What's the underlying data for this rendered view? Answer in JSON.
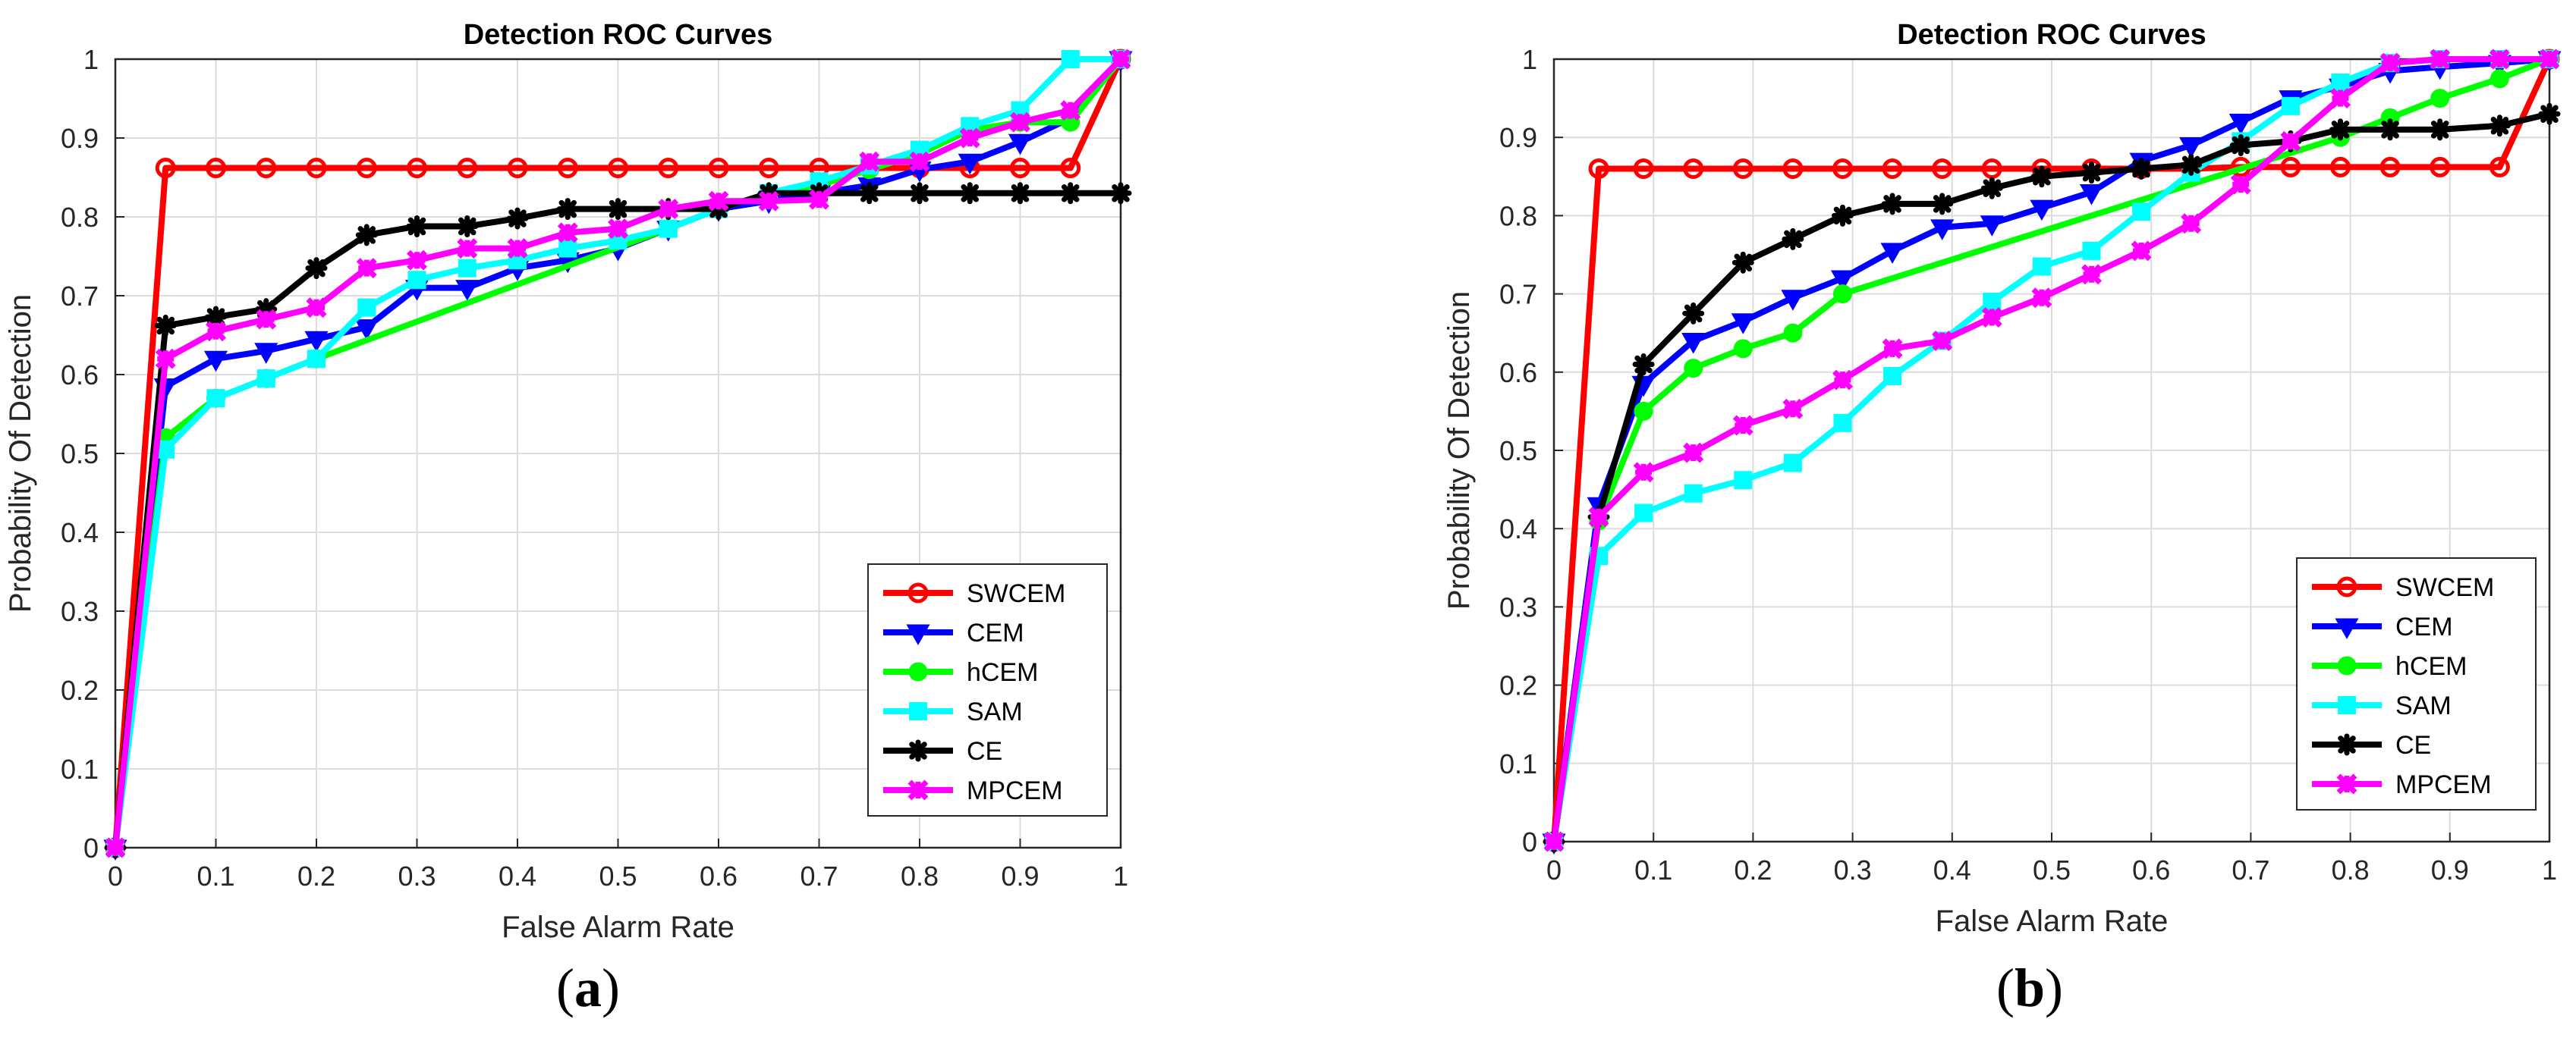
{
  "chart_data": [
    {
      "type": "line",
      "panel": "a",
      "title": "Detection ROC Curves",
      "xlabel": "False Alarm Rate",
      "ylabel": "Probability Of Detection",
      "xlim": [
        0,
        1
      ],
      "ylim": [
        0,
        1
      ],
      "xticks": [
        "0",
        "0.1",
        "0.2",
        "0.3",
        "0.4",
        "0.5",
        "0.6",
        "0.7",
        "0.8",
        "0.9",
        "1"
      ],
      "yticks": [
        "0",
        "0.1",
        "0.2",
        "0.3",
        "0.4",
        "0.5",
        "0.6",
        "0.7",
        "0.8",
        "0.9",
        "1"
      ],
      "grid": true,
      "legend_position": "bottom-right",
      "caption": {
        "open": "(",
        "letter": "a",
        "close": ")"
      },
      "series": [
        {
          "name": "SWCEM",
          "color": "#ff0000",
          "marker": "circle",
          "x": [
            0,
            0.05,
            0.1,
            0.15,
            0.2,
            0.25,
            0.3,
            0.35,
            0.4,
            0.45,
            0.5,
            0.55,
            0.6,
            0.65,
            0.7,
            0.75,
            0.8,
            0.85,
            0.9,
            0.95,
            1.0
          ],
          "y": [
            0,
            0.862,
            0.862,
            0.862,
            0.862,
            0.862,
            0.862,
            0.862,
            0.862,
            0.862,
            0.862,
            0.862,
            0.862,
            0.862,
            0.862,
            0.862,
            0.862,
            0.862,
            0.862,
            0.862,
            1.0
          ]
        },
        {
          "name": "CEM",
          "color": "#0000ff",
          "marker": "triangle-down",
          "x": [
            0,
            0.05,
            0.1,
            0.15,
            0.2,
            0.25,
            0.3,
            0.35,
            0.4,
            0.45,
            0.5,
            0.55,
            0.6,
            0.65,
            0.7,
            0.75,
            0.8,
            0.85,
            0.9,
            0.95,
            1.0
          ],
          "y": [
            0,
            0.585,
            0.62,
            0.63,
            0.645,
            0.66,
            0.71,
            0.71,
            0.735,
            0.745,
            0.76,
            0.785,
            0.81,
            0.82,
            0.83,
            0.84,
            0.86,
            0.87,
            0.895,
            0.925,
            1.0
          ]
        },
        {
          "name": "hCEM",
          "color": "#00ff00",
          "marker": "circle-filled",
          "x": [
            0,
            0.05,
            0.1,
            0.15,
            0.2,
            0.55,
            0.6,
            0.65,
            0.7,
            0.75,
            0.8,
            0.85,
            0.9,
            0.95,
            1.0
          ],
          "y": [
            0,
            0.52,
            0.57,
            0.595,
            0.62,
            0.785,
            0.81,
            0.83,
            0.84,
            0.86,
            0.88,
            0.91,
            0.92,
            0.92,
            1.0
          ]
        },
        {
          "name": "SAM",
          "color": "#00ffff",
          "marker": "square",
          "x": [
            0,
            0.05,
            0.1,
            0.15,
            0.2,
            0.25,
            0.3,
            0.35,
            0.4,
            0.45,
            0.5,
            0.55,
            0.6,
            0.65,
            0.7,
            0.75,
            0.8,
            0.85,
            0.9,
            0.95,
            1.0
          ],
          "y": [
            0,
            0.505,
            0.57,
            0.595,
            0.62,
            0.685,
            0.72,
            0.735,
            0.745,
            0.76,
            0.77,
            0.785,
            0.81,
            0.83,
            0.845,
            0.865,
            0.885,
            0.915,
            0.935,
            1.0,
            1.0
          ]
        },
        {
          "name": "CE",
          "color": "#000000",
          "marker": "star",
          "x": [
            0,
            0.05,
            0.1,
            0.15,
            0.2,
            0.25,
            0.3,
            0.35,
            0.4,
            0.45,
            0.5,
            0.55,
            0.6,
            0.65,
            0.7,
            0.75,
            0.8,
            0.85,
            0.9,
            0.95,
            1.0
          ],
          "y": [
            0,
            0.662,
            0.673,
            0.683,
            0.735,
            0.777,
            0.788,
            0.788,
            0.798,
            0.81,
            0.81,
            0.81,
            0.81,
            0.83,
            0.83,
            0.83,
            0.83,
            0.83,
            0.83,
            0.83,
            0.83
          ]
        },
        {
          "name": "MPCEM",
          "color": "#ff00ff",
          "marker": "star-square",
          "x": [
            0,
            0.05,
            0.1,
            0.15,
            0.2,
            0.25,
            0.3,
            0.35,
            0.4,
            0.45,
            0.5,
            0.55,
            0.6,
            0.65,
            0.7,
            0.75,
            0.8,
            0.85,
            0.9,
            0.95,
            1.0
          ],
          "y": [
            0,
            0.62,
            0.655,
            0.67,
            0.685,
            0.735,
            0.745,
            0.76,
            0.76,
            0.78,
            0.785,
            0.81,
            0.82,
            0.82,
            0.822,
            0.87,
            0.87,
            0.9,
            0.92,
            0.935,
            1.0
          ]
        }
      ]
    },
    {
      "type": "line",
      "panel": "b",
      "title": "Detection ROC Curves",
      "xlabel": "False Alarm Rate",
      "ylabel": "Probability Of Detection",
      "xlim": [
        0,
        1
      ],
      "ylim": [
        0,
        1
      ],
      "xticks": [
        "0",
        "0.1",
        "0.2",
        "0.3",
        "0.4",
        "0.5",
        "0.6",
        "0.7",
        "0.8",
        "0.9",
        "1"
      ],
      "yticks": [
        "0",
        "0.1",
        "0.2",
        "0.3",
        "0.4",
        "0.5",
        "0.6",
        "0.7",
        "0.8",
        "0.9",
        "1"
      ],
      "grid": true,
      "legend_position": "bottom-right",
      "caption": {
        "open": "(",
        "letter": "b",
        "close": ")"
      },
      "series": [
        {
          "name": "SWCEM",
          "color": "#ff0000",
          "marker": "circle",
          "x": [
            0,
            0.045,
            0.09,
            0.14,
            0.19,
            0.24,
            0.29,
            0.34,
            0.39,
            0.44,
            0.49,
            0.54,
            0.59,
            0.64,
            0.69,
            0.74,
            0.79,
            0.84,
            0.89,
            0.95,
            1.0
          ],
          "y": [
            0,
            0.86,
            0.86,
            0.86,
            0.86,
            0.86,
            0.86,
            0.86,
            0.86,
            0.86,
            0.86,
            0.86,
            0.86,
            0.86,
            0.862,
            0.862,
            0.862,
            0.862,
            0.862,
            0.862,
            1.0
          ]
        },
        {
          "name": "CEM",
          "color": "#0000ff",
          "marker": "triangle-down",
          "x": [
            0,
            0.045,
            0.09,
            0.14,
            0.19,
            0.24,
            0.29,
            0.34,
            0.39,
            0.44,
            0.49,
            0.54,
            0.59,
            0.64,
            0.69,
            0.74,
            0.79,
            0.84,
            0.89,
            0.95,
            1.0
          ],
          "y": [
            0,
            0.43,
            0.585,
            0.64,
            0.665,
            0.695,
            0.72,
            0.755,
            0.785,
            0.79,
            0.81,
            0.83,
            0.87,
            0.89,
            0.92,
            0.95,
            0.965,
            0.985,
            0.99,
            0.995,
            1.0
          ]
        },
        {
          "name": "hCEM",
          "color": "#00ff00",
          "marker": "circle-filled",
          "x": [
            0,
            0.045,
            0.09,
            0.14,
            0.19,
            0.24,
            0.29,
            0.79,
            0.84,
            0.89,
            0.95,
            1.0
          ],
          "y": [
            0,
            0.41,
            0.55,
            0.605,
            0.63,
            0.65,
            0.7,
            0.9,
            0.925,
            0.95,
            0.975,
            1.0
          ]
        },
        {
          "name": "SAM",
          "color": "#00ffff",
          "marker": "square",
          "x": [
            0,
            0.045,
            0.09,
            0.14,
            0.19,
            0.24,
            0.29,
            0.34,
            0.39,
            0.44,
            0.49,
            0.54,
            0.59,
            0.64,
            0.69,
            0.74,
            0.79,
            0.84,
            0.89,
            0.95,
            1.0
          ],
          "y": [
            0,
            0.365,
            0.42,
            0.445,
            0.462,
            0.484,
            0.535,
            0.595,
            0.64,
            0.69,
            0.735,
            0.755,
            0.805,
            0.855,
            0.895,
            0.94,
            0.97,
            0.995,
            1.0,
            1.0,
            1.0
          ]
        },
        {
          "name": "CE",
          "color": "#000000",
          "marker": "star",
          "x": [
            0,
            0.045,
            0.09,
            0.14,
            0.19,
            0.24,
            0.29,
            0.34,
            0.39,
            0.44,
            0.49,
            0.54,
            0.59,
            0.64,
            0.69,
            0.74,
            0.79,
            0.84,
            0.89,
            0.95,
            1.0
          ],
          "y": [
            0,
            0.415,
            0.61,
            0.675,
            0.74,
            0.77,
            0.8,
            0.815,
            0.815,
            0.835,
            0.85,
            0.855,
            0.86,
            0.865,
            0.89,
            0.895,
            0.91,
            0.91,
            0.91,
            0.915,
            0.93
          ]
        },
        {
          "name": "MPCEM",
          "color": "#ff00ff",
          "marker": "star-square",
          "x": [
            0,
            0.045,
            0.09,
            0.14,
            0.19,
            0.24,
            0.29,
            0.34,
            0.39,
            0.44,
            0.49,
            0.54,
            0.59,
            0.64,
            0.69,
            0.74,
            0.79,
            0.84,
            0.89,
            0.95,
            1.0
          ],
          "y": [
            0,
            0.415,
            0.472,
            0.497,
            0.532,
            0.553,
            0.59,
            0.63,
            0.64,
            0.67,
            0.695,
            0.725,
            0.755,
            0.79,
            0.84,
            0.895,
            0.95,
            0.995,
            1.0,
            1.0,
            1.0
          ]
        }
      ]
    }
  ]
}
